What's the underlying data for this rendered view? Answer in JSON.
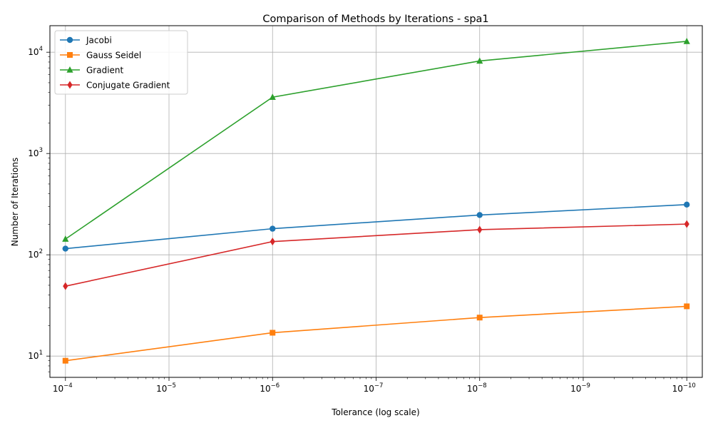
{
  "chart_data": {
    "type": "line",
    "title": "Comparison of Methods by Iterations - spa1",
    "xlabel": "Tolerance (log scale)",
    "ylabel": "Number of Iterations",
    "x_scale": "log",
    "y_scale": "log",
    "x_inverted": true,
    "grid": true,
    "legend_position": "top-left",
    "x": [
      0.0001,
      1e-06,
      1e-08,
      1e-10
    ],
    "x_ticks": [
      {
        "value": 0.0001,
        "base": "10",
        "exp": "−4"
      },
      {
        "value": 1e-05,
        "base": "10",
        "exp": "−5"
      },
      {
        "value": 1e-06,
        "base": "10",
        "exp": "−6"
      },
      {
        "value": 1e-07,
        "base": "10",
        "exp": "−7"
      },
      {
        "value": 1e-08,
        "base": "10",
        "exp": "−8"
      },
      {
        "value": 1e-09,
        "base": "10",
        "exp": "−9"
      },
      {
        "value": 1e-10,
        "base": "10",
        "exp": "−10"
      }
    ],
    "y_ticks": [
      {
        "value": 10,
        "base": "10",
        "exp": "1"
      },
      {
        "value": 100,
        "base": "10",
        "exp": "2"
      },
      {
        "value": 1000,
        "base": "10",
        "exp": "3"
      },
      {
        "value": 10000,
        "base": "10",
        "exp": "4"
      }
    ],
    "series": [
      {
        "name": "Jacobi",
        "values": [
          115,
          181,
          247,
          313
        ],
        "color": "#1f77b4",
        "marker": "circle"
      },
      {
        "name": "Gauss Seidel",
        "values": [
          9,
          17,
          24,
          31
        ],
        "color": "#ff7f0e",
        "marker": "square"
      },
      {
        "name": "Gradient",
        "values": [
          143,
          3600,
          8200,
          12800
        ],
        "color": "#2ca02c",
        "marker": "triangle"
      },
      {
        "name": "Conjugate Gradient",
        "values": [
          49,
          135,
          177,
          201
        ],
        "color": "#d62728",
        "marker": "diamond"
      }
    ]
  }
}
